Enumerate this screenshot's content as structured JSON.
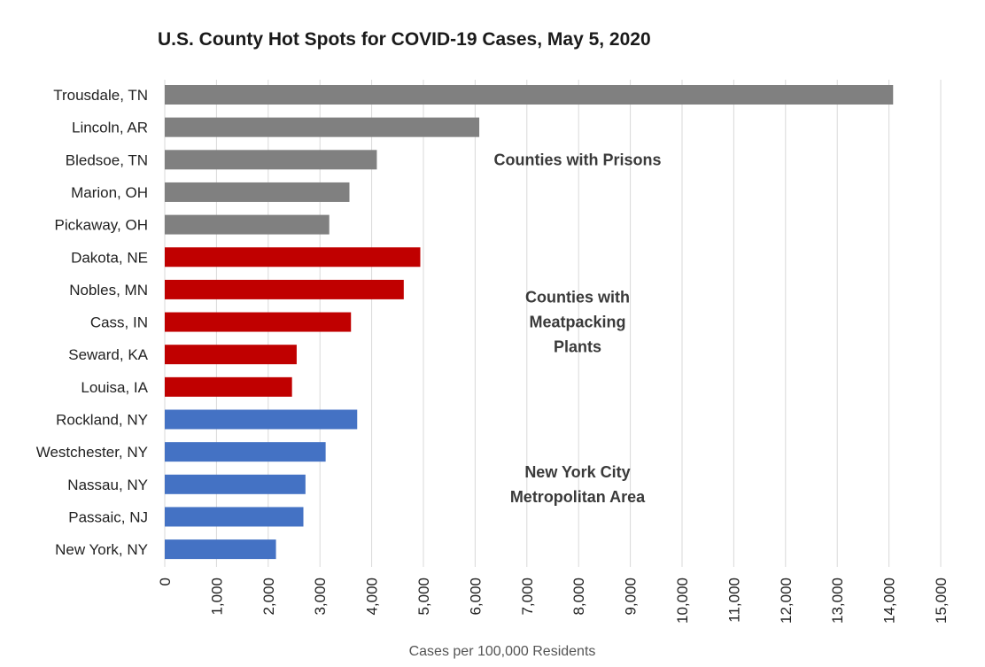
{
  "chart_data": {
    "type": "bar",
    "orientation": "horizontal",
    "title": "U.S. County Hot Spots for COVID-19 Cases, May 5, 2020",
    "xlabel": "Cases per 100,000 Residents",
    "ylabel": "",
    "xlim": [
      0,
      15000
    ],
    "tick_step": 1000,
    "grid": true,
    "ticks": [
      "0",
      "1,000",
      "2,000",
      "3,000",
      "4,000",
      "5,000",
      "6,000",
      "7,000",
      "8,000",
      "9,000",
      "10,000",
      "11,000",
      "12,000",
      "13,000",
      "14,000",
      "15,000"
    ],
    "categories": [
      "Trousdale, TN",
      "Lincoln, AR",
      "Bledsoe, TN",
      "Marion, OH",
      "Pickaway, OH",
      "Dakota, NE",
      "Nobles, MN",
      "Cass, IN",
      "Seward, KA",
      "Louisa, IA",
      "Rockland, NY",
      "Westchester, NY",
      "Nassau, NY",
      "Passaic, NJ",
      "New York, NY"
    ],
    "values": [
      14080,
      6080,
      4100,
      3570,
      3180,
      4940,
      4620,
      3600,
      2550,
      2460,
      3720,
      3110,
      2720,
      2680,
      2150
    ],
    "groups": [
      {
        "name": "Counties with Prisons",
        "label_lines": [
          "Counties with Prisons"
        ],
        "color": "#808080",
        "start": 0,
        "end": 4
      },
      {
        "name": "Counties with Meatpacking Plants",
        "label_lines": [
          "Counties with",
          "Meatpacking",
          "Plants"
        ],
        "color": "#c00000",
        "start": 5,
        "end": 9
      },
      {
        "name": "New York City Metropolitan Area",
        "label_lines": [
          "New York City",
          "Metropolitan Area"
        ],
        "color": "#4472c4",
        "start": 10,
        "end": 14
      }
    ]
  }
}
